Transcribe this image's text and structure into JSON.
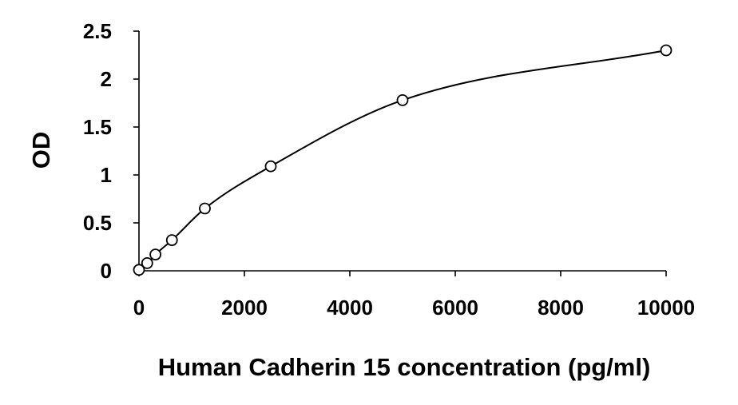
{
  "chart_data": {
    "type": "scatter",
    "xlabel": "Human Cadherin 15 concentration (pg/ml)",
    "ylabel": "OD",
    "xlim": [
      0,
      10000
    ],
    "ylim": [
      0,
      2.5
    ],
    "x_ticks": [
      0,
      2000,
      4000,
      6000,
      8000,
      10000
    ],
    "x_tick_labels": [
      "0",
      "2000",
      "4000",
      "6000",
      "8000",
      "10000"
    ],
    "y_ticks": [
      0,
      0.5,
      1,
      1.5,
      2,
      2.5
    ],
    "y_tick_labels": [
      "0",
      "0.5",
      "1",
      "1.5",
      "2",
      "2.5"
    ],
    "grid": false,
    "series": [
      {
        "x": [
          0,
          156,
          312,
          625,
          1250,
          2500,
          5000,
          10000
        ],
        "y": [
          0.01,
          0.08,
          0.17,
          0.32,
          0.65,
          1.09,
          1.78,
          2.3
        ],
        "marker": "open-circle",
        "fit": "smooth-curve"
      }
    ]
  }
}
